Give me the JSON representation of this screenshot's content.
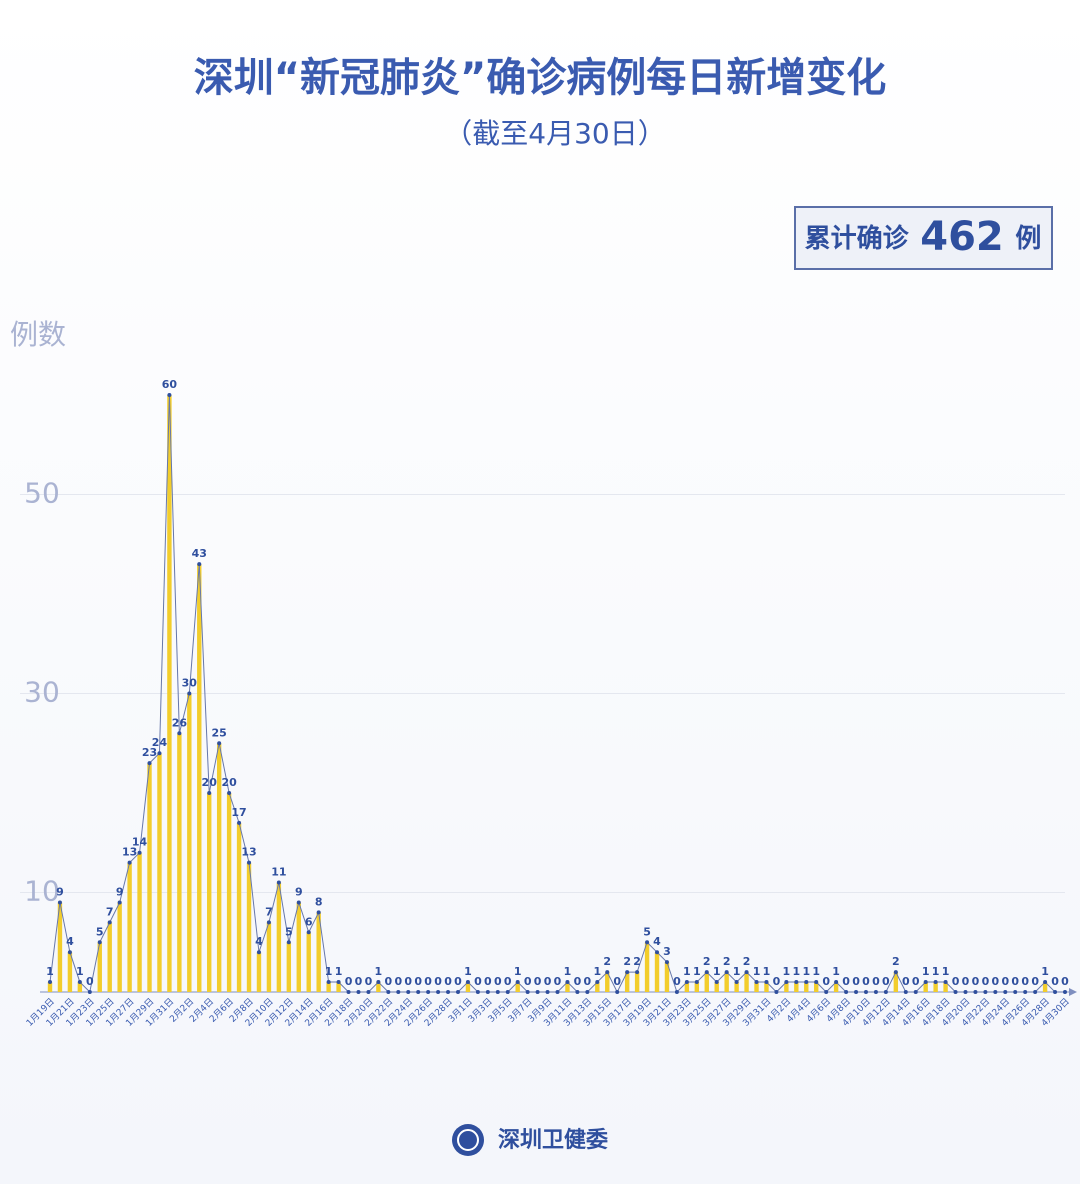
{
  "chart_data": {
    "type": "bar",
    "title": "深圳“新冠肺炎”确诊病例每日新增变化",
    "subtitle": "（截至4月30日）",
    "total_box": {
      "prefix": "累计确诊",
      "value": 462,
      "suffix": "例"
    },
    "y_label": "例数",
    "source": "深圳卫健委",
    "categories": [
      "1月19日",
      null,
      "1月21日",
      null,
      "1月23日",
      null,
      "1月25日",
      null,
      "1月27日",
      null,
      "1月29日",
      null,
      "1月31日",
      null,
      "2月2日",
      null,
      "2月4日",
      null,
      "2月6日",
      null,
      "2月8日",
      null,
      "2月10日",
      null,
      "2月12日",
      null,
      "2月14日",
      null,
      "2月16日",
      null,
      "2月18日",
      null,
      "2月20日",
      null,
      "2月22日",
      null,
      "2月24日",
      null,
      "2月26日",
      null,
      "2月28日",
      null,
      "3月1日",
      null,
      "3月3日",
      null,
      "3月5日",
      null,
      "3月7日",
      null,
      "3月9日",
      null,
      "3月11日",
      null,
      "3月13日",
      null,
      "3月15日",
      null,
      "3月17日",
      null,
      "3月19日",
      null,
      "3月21日",
      null,
      "3月23日",
      null,
      "3月25日",
      null,
      "3月27日",
      null,
      "3月29日",
      null,
      "3月31日",
      null,
      "4月2日",
      null,
      "4月4日",
      null,
      "4月6日",
      null,
      "4月8日",
      null,
      "4月10日",
      null,
      "4月12日",
      null,
      "4月14日",
      null,
      "4月16日",
      null,
      "4月18日",
      null,
      "4月20日",
      null,
      "4月22日",
      null,
      "4月24日",
      null,
      "4月26日",
      null,
      "4月28日",
      null,
      "4月30日"
    ],
    "values": [
      1,
      9,
      4,
      1,
      0,
      5,
      7,
      9,
      13,
      14,
      23,
      24,
      60,
      26,
      30,
      43,
      20,
      25,
      20,
      17,
      13,
      4,
      7,
      11,
      5,
      9,
      6,
      8,
      1,
      1,
      0,
      0,
      0,
      1,
      0,
      0,
      0,
      0,
      0,
      0,
      0,
      0,
      1,
      0,
      0,
      0,
      0,
      1,
      0,
      0,
      0,
      0,
      1,
      0,
      0,
      1,
      2,
      0,
      2,
      2,
      5,
      4,
      3,
      0,
      1,
      1,
      2,
      1,
      2,
      1,
      2,
      1,
      1,
      0,
      1,
      1,
      1,
      1,
      0,
      1,
      0,
      0,
      0,
      0,
      0,
      2,
      0,
      0,
      1,
      1,
      1,
      0,
      0,
      0,
      0,
      0,
      0,
      0,
      0,
      0,
      1,
      0,
      0
    ],
    "color": "#f2cd2c",
    "line_color": "#6677aa",
    "point_color": "#2f4f9e",
    "ylim": [
      0,
      60
    ],
    "yticks": [
      10,
      30,
      50
    ],
    "grid": true
  }
}
